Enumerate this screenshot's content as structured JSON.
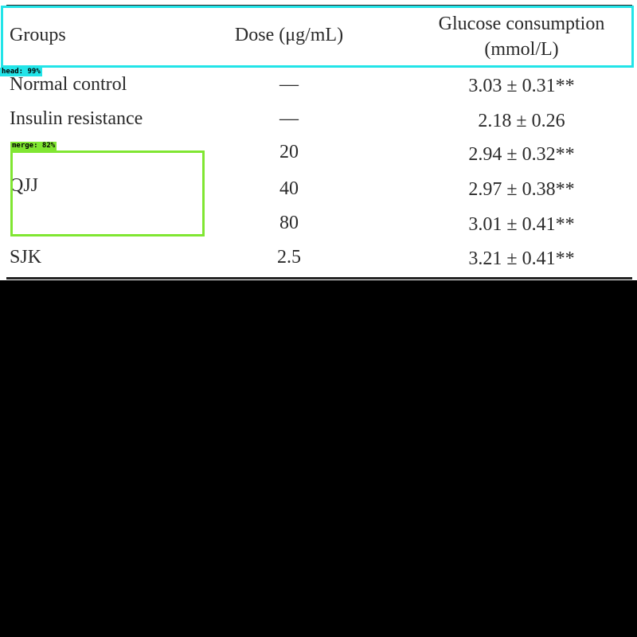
{
  "table": {
    "headers": {
      "groups": "Groups",
      "dose": "Dose (μg/mL)",
      "glucose_line1": "Glucose consumption",
      "glucose_line2": "(mmol/L)"
    },
    "rows": [
      {
        "group": "Normal control",
        "dose": "—",
        "value": "3.03 ± 0.31**"
      },
      {
        "group": "Insulin resistance",
        "dose": "—",
        "value": "2.18 ± 0.26"
      },
      {
        "group": "QJJ",
        "dose": "20",
        "value": "2.94 ± 0.32**"
      },
      {
        "group": "",
        "dose": "40",
        "value": "2.97 ± 0.38**"
      },
      {
        "group": "",
        "dose": "80",
        "value": "3.01 ± 0.41**"
      },
      {
        "group": "SJK",
        "dose": "2.5",
        "value": "3.21 ± 0.41**"
      }
    ]
  },
  "annotations": {
    "head_label": "head: 99%",
    "merge_label": "merge: 82%",
    "head_color": "#22e4e8",
    "merge_color": "#80e632"
  }
}
